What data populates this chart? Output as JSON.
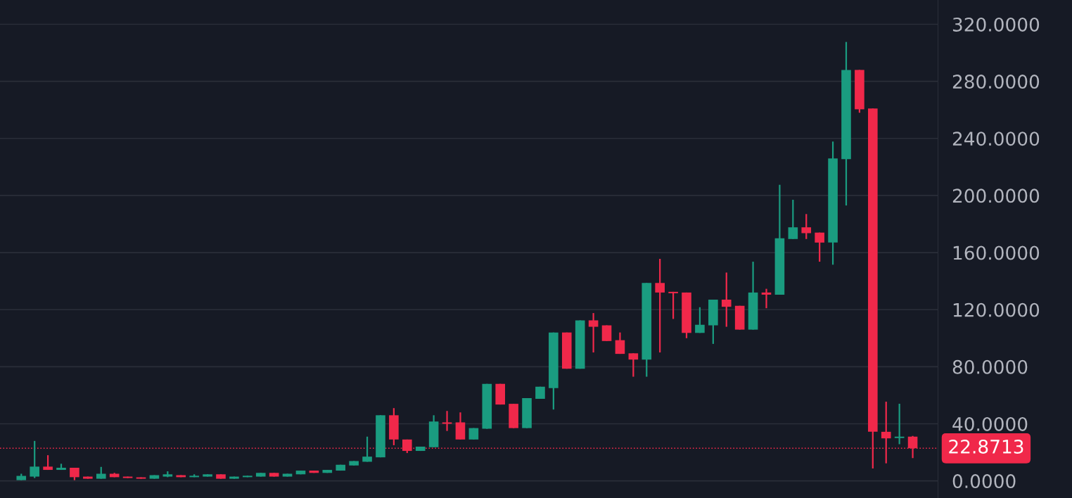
{
  "chart_data": {
    "type": "candlestick",
    "categories": [
      null,
      null,
      null,
      null,
      null,
      null,
      null,
      null,
      null,
      null,
      null,
      null,
      null,
      null,
      null,
      null,
      null,
      null,
      null,
      null,
      null,
      null,
      null,
      null,
      null,
      null,
      null,
      null,
      null,
      null,
      null,
      null,
      null,
      null,
      null,
      null,
      null,
      null,
      null,
      null,
      null,
      null,
      null,
      null,
      null,
      null,
      null,
      null,
      null,
      null,
      null,
      null,
      null,
      null,
      null,
      null,
      null,
      null,
      null,
      null,
      null,
      null,
      null,
      null,
      null,
      null,
      null,
      null
    ],
    "ohlc": [
      [
        0.5,
        5,
        0.5,
        3.5
      ],
      [
        3,
        28,
        2,
        10
      ],
      [
        10,
        18,
        7.7,
        7.7
      ],
      [
        7.7,
        12,
        7.7,
        9.2
      ],
      [
        9.2,
        9.2,
        0.5,
        2.6
      ],
      [
        3,
        3,
        1.5,
        1.5
      ],
      [
        1.5,
        9.8,
        1.5,
        5
      ],
      [
        5,
        5.6,
        2.6,
        2.6
      ],
      [
        3,
        3,
        2,
        2
      ],
      [
        2.5,
        2.5,
        1.5,
        1.5
      ],
      [
        1.5,
        4,
        1.5,
        4
      ],
      [
        3,
        6.7,
        2.6,
        4.6
      ],
      [
        4,
        4,
        2.6,
        2.6
      ],
      [
        2.6,
        4.6,
        2.6,
        3.6
      ],
      [
        3,
        4.6,
        3,
        4.6
      ],
      [
        4.6,
        4.6,
        1.5,
        1.5
      ],
      [
        1.5,
        3,
        1.5,
        3
      ],
      [
        2.6,
        3.6,
        2.6,
        3.6
      ],
      [
        3,
        5.6,
        3,
        5.6
      ],
      [
        5.6,
        5.6,
        3,
        3
      ],
      [
        3,
        5,
        3,
        5
      ],
      [
        4.6,
        7.2,
        4.6,
        7.2
      ],
      [
        7.2,
        7.2,
        5.6,
        5.6
      ],
      [
        5.6,
        7.7,
        5.6,
        7.7
      ],
      [
        7.2,
        11.3,
        7.2,
        11.3
      ],
      [
        10.8,
        13.9,
        10.8,
        13.9
      ],
      [
        13.4,
        31,
        13.4,
        17
      ],
      [
        16.5,
        46,
        16.5,
        46
      ],
      [
        46,
        51,
        25,
        29
      ],
      [
        29,
        29,
        19.5,
        21
      ],
      [
        21,
        24,
        21,
        24
      ],
      [
        23.6,
        46,
        23.6,
        41.6
      ],
      [
        41,
        49,
        35,
        40
      ],
      [
        41,
        48,
        29,
        29
      ],
      [
        29,
        37,
        29,
        37
      ],
      [
        36.5,
        68,
        36.5,
        68
      ],
      [
        68,
        68,
        53.5,
        53.5
      ],
      [
        54,
        54,
        37,
        37
      ],
      [
        37,
        58,
        37,
        58
      ],
      [
        57.5,
        66,
        57.5,
        66
      ],
      [
        65,
        104,
        50,
        104
      ],
      [
        104,
        104,
        78.6,
        78.6
      ],
      [
        78.6,
        112.5,
        78.6,
        112.5
      ],
      [
        112.5,
        117.6,
        90,
        108
      ],
      [
        109,
        109,
        98,
        98
      ],
      [
        98.6,
        104,
        89,
        89
      ],
      [
        89.4,
        89.4,
        73,
        85
      ],
      [
        85,
        138.7,
        73,
        138.7
      ],
      [
        138.7,
        155.6,
        90,
        132
      ],
      [
        132.5,
        132.5,
        113.5,
        131.5
      ],
      [
        132,
        132,
        100,
        103.7
      ],
      [
        103.7,
        121.7,
        103.7,
        109.4
      ],
      [
        109,
        127,
        96,
        127
      ],
      [
        127,
        146,
        108,
        122
      ],
      [
        122.7,
        122.7,
        106,
        106
      ],
      [
        106,
        153.6,
        106,
        132
      ],
      [
        132,
        134.6,
        121,
        130.5
      ],
      [
        130.5,
        207.5,
        130.5,
        170
      ],
      [
        169.5,
        197,
        169.5,
        177.7
      ],
      [
        177.7,
        187,
        169.5,
        173.6
      ],
      [
        174,
        174,
        153.6,
        167
      ],
      [
        167,
        237.8,
        151.5,
        226
      ],
      [
        225.5,
        307.6,
        193,
        288
      ],
      [
        288,
        288,
        258,
        260.4
      ],
      [
        261,
        261,
        8.7,
        34.4
      ],
      [
        34.4,
        55.5,
        12.3,
        29.8
      ],
      [
        30,
        54,
        25.7,
        31
      ],
      [
        31,
        31.5,
        16,
        22.8713
      ]
    ],
    "colors": [
      "#1a9c80",
      "#1a9c80",
      "#f0284a",
      "#1a9c80",
      "#f0284a",
      "#f0284a",
      "#1a9c80",
      "#f0284a",
      "#f0284a",
      "#f0284a",
      "#1a9c80",
      "#1a9c80",
      "#f0284a",
      "#1a9c80",
      "#1a9c80",
      "#f0284a",
      "#1a9c80",
      "#1a9c80",
      "#1a9c80",
      "#f0284a",
      "#1a9c80",
      "#1a9c80",
      "#f0284a",
      "#1a9c80",
      "#1a9c80",
      "#1a9c80",
      "#1a9c80",
      "#1a9c80",
      "#f0284a",
      "#f0284a",
      "#1a9c80",
      "#1a9c80",
      "#f0284a",
      "#f0284a",
      "#1a9c80",
      "#1a9c80",
      "#f0284a",
      "#f0284a",
      "#1a9c80",
      "#1a9c80",
      "#1a9c80",
      "#f0284a",
      "#1a9c80",
      "#f0284a",
      "#f0284a",
      "#f0284a",
      "#f0284a",
      "#1a9c80",
      "#f0284a",
      "#f0284a",
      "#f0284a",
      "#1a9c80",
      "#1a9c80",
      "#f0284a",
      "#f0284a",
      "#1a9c80",
      "#f0284a",
      "#1a9c80",
      "#1a9c80",
      "#f0284a",
      "#f0284a",
      "#1a9c80",
      "#1a9c80",
      "#f0284a",
      "#f0284a",
      "#f0284a",
      "#1a9c80",
      "#f0284a"
    ],
    "ylim": [
      -12,
      337
    ],
    "yticks": [
      {
        "value": 0,
        "label": "0.0000"
      },
      {
        "value": 40,
        "label": "40.0000"
      },
      {
        "value": 80,
        "label": "80.0000"
      },
      {
        "value": 120,
        "label": "120.0000"
      },
      {
        "value": 160,
        "label": "160.0000"
      },
      {
        "value": 200,
        "label": "200.0000"
      },
      {
        "value": 240,
        "label": "240.0000"
      },
      {
        "value": 280,
        "label": "280.0000"
      },
      {
        "value": 320,
        "label": "320.0000"
      }
    ],
    "ref_lines": [
      {
        "axis": "y",
        "value": 22.8713,
        "label": "22.8713",
        "color": "#f0284a",
        "line_style": "dotted"
      }
    ],
    "grid": "y"
  }
}
